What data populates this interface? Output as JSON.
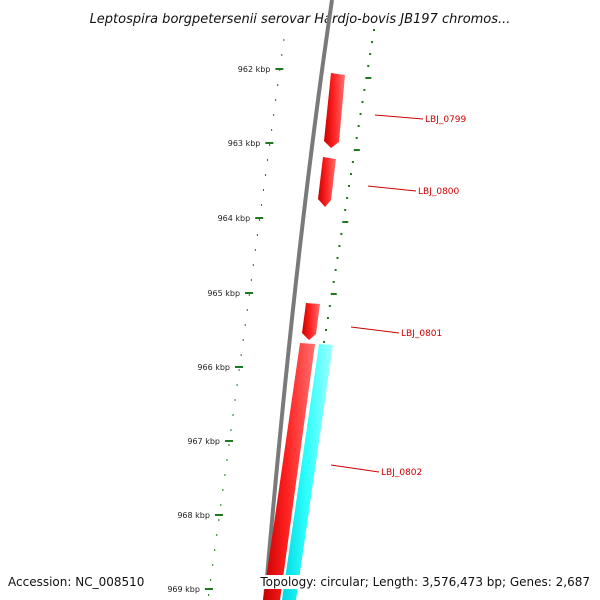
{
  "title": "Leptospira borgpetersenii serovar Hardjo-bovis JB197 chromos...",
  "ticks": [
    "962 kbp",
    "963 kbp",
    "964 kbp",
    "965 kbp",
    "966 kbp",
    "967 kbp",
    "968 kbp",
    "969 kbp"
  ],
  "genes": [
    {
      "label": "LBJ_0799",
      "strand": "forward",
      "color": "#ff0000"
    },
    {
      "label": "LBJ_0800",
      "strand": "forward",
      "color": "#ff0000"
    },
    {
      "label": "LBJ_0801",
      "strand": "forward",
      "color": "#ff0000"
    },
    {
      "label": "LBJ_0802",
      "strand": "forward",
      "color": "#ff0000"
    }
  ],
  "features": [
    {
      "kind": "CDS",
      "color": "#ff0000"
    },
    {
      "kind": "rRNA",
      "color": "#00ffff"
    }
  ],
  "colors": {
    "backbone": "#808080",
    "tick": "#1e7a1e",
    "label": "#cc0000"
  },
  "footer": {
    "accession": "Accession: NC_008510",
    "summary": "Topology: circular; Length: 3,576,473 bp; Genes: 2,687"
  }
}
